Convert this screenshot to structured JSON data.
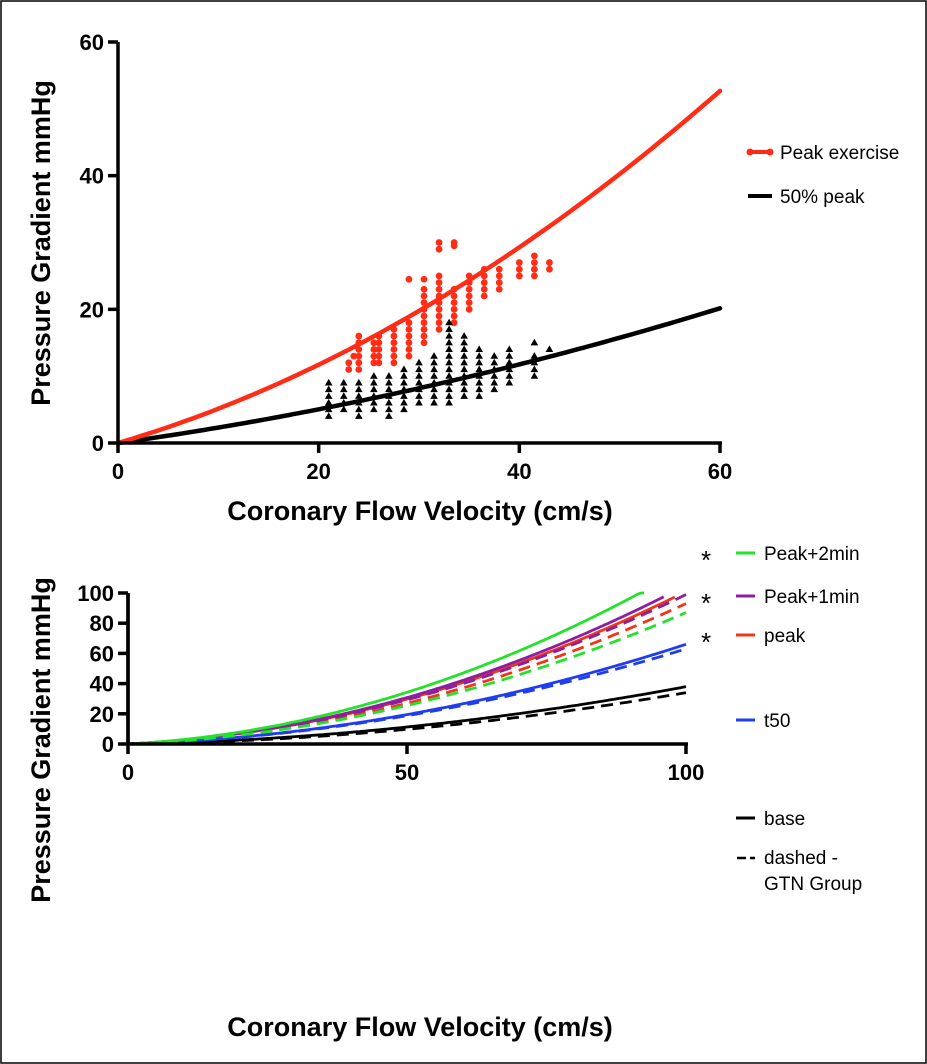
{
  "chart_data": [
    {
      "type": "scatter",
      "title": "",
      "xlabel": "Coronary Flow Velocity (cm/s)",
      "ylabel": "Pressure Gradient  mmHg",
      "xlim": [
        0,
        60
      ],
      "ylim": [
        0,
        60
      ],
      "x_ticks": [
        "0",
        "20",
        "40",
        "60"
      ],
      "y_ticks": [
        "0",
        "20",
        "40",
        "60"
      ],
      "legend_position": "right",
      "series": [
        {
          "name": "Peak exercise",
          "color": "#ff2d16",
          "marker": "circle",
          "fit_curve": {
            "a": 0.44,
            "b": 0.0073
          },
          "points": [
            [
              23,
              11
            ],
            [
              23,
              12
            ],
            [
              23.5,
              13
            ],
            [
              24,
              11
            ],
            [
              24,
              12
            ],
            [
              24,
              13
            ],
            [
              24,
              14
            ],
            [
              24,
              15
            ],
            [
              24,
              16
            ],
            [
              25.5,
              12
            ],
            [
              25.5,
              13
            ],
            [
              25.5,
              14
            ],
            [
              25.5,
              15
            ],
            [
              26,
              12
            ],
            [
              26,
              13
            ],
            [
              26,
              14
            ],
            [
              26,
              15
            ],
            [
              26,
              16
            ],
            [
              27.5,
              12
            ],
            [
              27.5,
              13
            ],
            [
              27.5,
              14
            ],
            [
              27.5,
              15
            ],
            [
              27.5,
              16
            ],
            [
              27.5,
              17
            ],
            [
              29,
              13
            ],
            [
              29,
              14
            ],
            [
              29,
              15
            ],
            [
              29,
              16
            ],
            [
              29,
              17
            ],
            [
              29,
              18
            ],
            [
              29,
              24.5
            ],
            [
              30.5,
              15
            ],
            [
              30.5,
              16
            ],
            [
              30.5,
              17
            ],
            [
              30.5,
              18
            ],
            [
              30.5,
              19
            ],
            [
              30.5,
              20
            ],
            [
              30.5,
              21
            ],
            [
              30.5,
              22
            ],
            [
              30.5,
              23
            ],
            [
              30.5,
              24.5
            ],
            [
              32,
              17
            ],
            [
              32,
              18
            ],
            [
              32,
              19
            ],
            [
              32,
              20
            ],
            [
              32,
              21
            ],
            [
              32,
              22
            ],
            [
              32,
              23
            ],
            [
              32,
              24
            ],
            [
              32,
              25
            ],
            [
              32,
              30
            ],
            [
              32,
              29
            ],
            [
              33.5,
              18
            ],
            [
              33.5,
              19
            ],
            [
              33.5,
              20
            ],
            [
              33.5,
              21
            ],
            [
              33.5,
              22
            ],
            [
              33.5,
              23
            ],
            [
              33.5,
              29.5
            ],
            [
              33.5,
              30
            ],
            [
              35,
              20
            ],
            [
              35,
              21
            ],
            [
              35,
              22
            ],
            [
              35,
              23
            ],
            [
              35,
              24
            ],
            [
              35,
              25
            ],
            [
              36.5,
              22
            ],
            [
              36.5,
              23
            ],
            [
              36.5,
              24
            ],
            [
              36.5,
              25
            ],
            [
              36.5,
              26
            ],
            [
              38,
              23
            ],
            [
              38,
              24
            ],
            [
              38,
              25
            ],
            [
              38,
              26
            ],
            [
              40,
              25
            ],
            [
              40,
              26
            ],
            [
              40,
              27
            ],
            [
              41.5,
              25
            ],
            [
              41.5,
              26
            ],
            [
              41.5,
              27
            ],
            [
              41.5,
              28
            ],
            [
              43,
              26
            ],
            [
              43,
              27
            ]
          ]
        },
        {
          "name": "50% peak",
          "color": "#000000",
          "marker": "triangle",
          "fit_curve": {
            "a": 0.21,
            "b": 0.0021
          },
          "points": [
            [
              21,
              4
            ],
            [
              21,
              5
            ],
            [
              21,
              6
            ],
            [
              21,
              7
            ],
            [
              21,
              8
            ],
            [
              21,
              9
            ],
            [
              22.5,
              5
            ],
            [
              22.5,
              6
            ],
            [
              22.5,
              7
            ],
            [
              22.5,
              8
            ],
            [
              22.5,
              9
            ],
            [
              24,
              4
            ],
            [
              24,
              5
            ],
            [
              24,
              6
            ],
            [
              24,
              7
            ],
            [
              24,
              8
            ],
            [
              24,
              9
            ],
            [
              25.5,
              5
            ],
            [
              25.5,
              6
            ],
            [
              25.5,
              7
            ],
            [
              25.5,
              8
            ],
            [
              25.5,
              9
            ],
            [
              25.5,
              10
            ],
            [
              27,
              4
            ],
            [
              27,
              5
            ],
            [
              27,
              6
            ],
            [
              27,
              7
            ],
            [
              27,
              8
            ],
            [
              27,
              9
            ],
            [
              27,
              10
            ],
            [
              28.5,
              5
            ],
            [
              28.5,
              6
            ],
            [
              28.5,
              7
            ],
            [
              28.5,
              8
            ],
            [
              28.5,
              9
            ],
            [
              28.5,
              10
            ],
            [
              28.5,
              11
            ],
            [
              30,
              6
            ],
            [
              30,
              7
            ],
            [
              30,
              8
            ],
            [
              30,
              9
            ],
            [
              30,
              10
            ],
            [
              30,
              11
            ],
            [
              30,
              12
            ],
            [
              31.5,
              6
            ],
            [
              31.5,
              7
            ],
            [
              31.5,
              8
            ],
            [
              31.5,
              9
            ],
            [
              31.5,
              10
            ],
            [
              31.5,
              11
            ],
            [
              31.5,
              12
            ],
            [
              31.5,
              13
            ],
            [
              33,
              6
            ],
            [
              33,
              7
            ],
            [
              33,
              8
            ],
            [
              33,
              9
            ],
            [
              33,
              10
            ],
            [
              33,
              11
            ],
            [
              33,
              12
            ],
            [
              33,
              13
            ],
            [
              33,
              14
            ],
            [
              33,
              15
            ],
            [
              33,
              16
            ],
            [
              33,
              17
            ],
            [
              33,
              18
            ],
            [
              34.5,
              7
            ],
            [
              34.5,
              8
            ],
            [
              34.5,
              9
            ],
            [
              34.5,
              10
            ],
            [
              34.5,
              11
            ],
            [
              34.5,
              12
            ],
            [
              34.5,
              13
            ],
            [
              34.5,
              14
            ],
            [
              34.5,
              15
            ],
            [
              34.5,
              16
            ],
            [
              36,
              7
            ],
            [
              36,
              8
            ],
            [
              36,
              9
            ],
            [
              36,
              10
            ],
            [
              36,
              11
            ],
            [
              36,
              12
            ],
            [
              36,
              13
            ],
            [
              36,
              14
            ],
            [
              37.5,
              8
            ],
            [
              37.5,
              9
            ],
            [
              37.5,
              10
            ],
            [
              37.5,
              11
            ],
            [
              37.5,
              12
            ],
            [
              37.5,
              13
            ],
            [
              39,
              9
            ],
            [
              39,
              10
            ],
            [
              39,
              11
            ],
            [
              39,
              12
            ],
            [
              39,
              13
            ],
            [
              39,
              14
            ],
            [
              41.5,
              10
            ],
            [
              41.5,
              11
            ],
            [
              41.5,
              12
            ],
            [
              41.5,
              13
            ],
            [
              41.5,
              15
            ],
            [
              43,
              14
            ]
          ]
        }
      ]
    },
    {
      "type": "line",
      "title": "",
      "xlabel": "Coronary Flow Velocity (cm/s)",
      "ylabel": "Pressure Gradient  mmHg",
      "xlim": [
        0,
        100
      ],
      "ylim": [
        0,
        100
      ],
      "x_ticks": [
        "0",
        "50",
        "100"
      ],
      "y_ticks": [
        "0",
        "20",
        "40",
        "60",
        "80",
        "100"
      ],
      "legend_position": "right",
      "series": [
        {
          "name": "Peak+2min",
          "color": "#22e22a",
          "significant": "*",
          "solid": {
            "a": 0.2,
            "b": 0.0097,
            "xmax": 92.5
          },
          "dashed": {
            "a": 0.15,
            "b": 0.0072,
            "xmax": 100
          }
        },
        {
          "name": "Peak+1min",
          "color": "#8e1ea0",
          "significant": "*",
          "solid": {
            "a": 0.18,
            "b": 0.0087,
            "xmax": 96
          },
          "dashed": {
            "a": 0.18,
            "b": 0.0081,
            "xmax": 100
          }
        },
        {
          "name": "peak",
          "color": "#f03518",
          "significant": "*",
          "solid": {
            "a": 0.18,
            "b": 0.0083,
            "xmax": 98
          },
          "dashed": {
            "a": 0.15,
            "b": 0.0078,
            "xmax": 100
          }
        },
        {
          "name": "t50",
          "color": "#1f3cf0",
          "significant": "",
          "solid": {
            "a": 0.12,
            "b": 0.0054,
            "xmax": 100
          },
          "dashed": {
            "a": 0.12,
            "b": 0.0051,
            "xmax": 100
          }
        },
        {
          "name": "base",
          "color": "#000000",
          "significant": "",
          "solid": {
            "a": 0.07,
            "b": 0.0031,
            "xmax": 100
          },
          "dashed": {
            "a": 0.05,
            "b": 0.0029,
            "xmax": 100
          }
        }
      ],
      "dashed_note": {
        "line1": "dashed -",
        "line2": "GTN Group"
      }
    }
  ]
}
